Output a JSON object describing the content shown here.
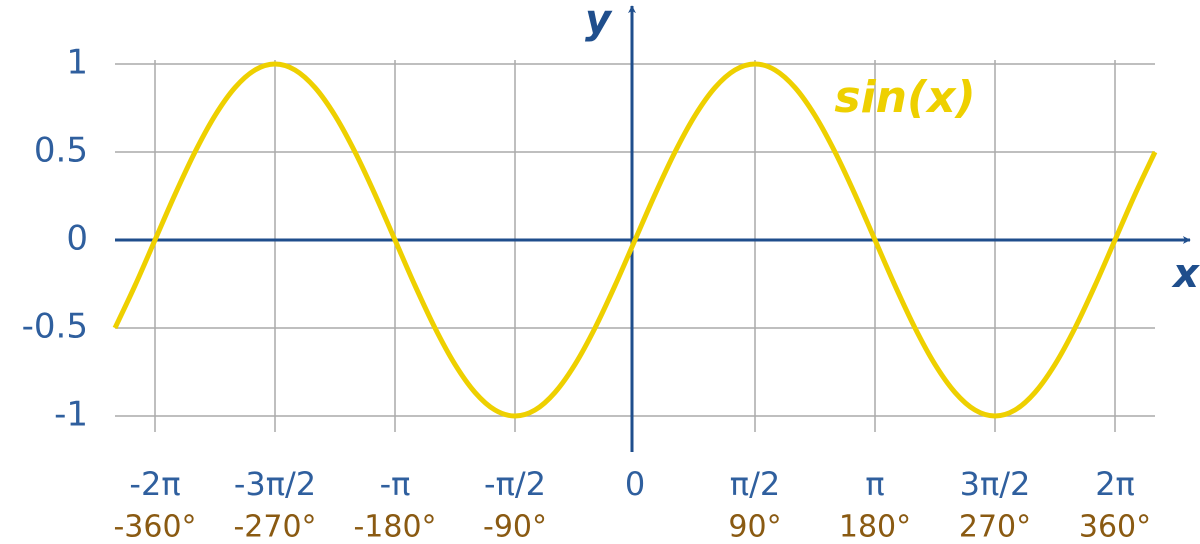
{
  "chart_data": {
    "type": "line",
    "x_label": "x",
    "y_label": "y",
    "x": [
      -390,
      -375,
      -360,
      -345,
      -330,
      -315,
      -300,
      -285,
      -270,
      -255,
      -240,
      -225,
      -210,
      -195,
      -180,
      -165,
      -150,
      -135,
      -120,
      -105,
      -90,
      -75,
      -60,
      -45,
      -30,
      -15,
      0,
      15,
      30,
      45,
      60,
      75,
      90,
      105,
      120,
      135,
      150,
      165,
      180,
      195,
      210,
      225,
      240,
      255,
      270,
      285,
      300,
      315,
      330,
      345,
      360,
      375,
      390
    ],
    "series": [
      {
        "name": "sin(x)",
        "color": "#eed000",
        "values": [
          -0.5,
          -0.259,
          0,
          0.259,
          0.5,
          0.707,
          0.866,
          0.966,
          1,
          0.966,
          0.866,
          0.707,
          0.5,
          0.259,
          0,
          -0.259,
          -0.5,
          -0.707,
          -0.866,
          -0.966,
          -1,
          -0.966,
          -0.866,
          -0.707,
          -0.5,
          -0.259,
          0,
          0.259,
          0.5,
          0.707,
          0.866,
          0.966,
          1,
          0.966,
          0.866,
          0.707,
          0.5,
          0.259,
          0,
          -0.259,
          -0.5,
          -0.707,
          -0.866,
          -0.966,
          -1,
          -0.966,
          -0.866,
          -0.707,
          -0.5,
          -0.259,
          0,
          0.259,
          0.5
        ]
      }
    ],
    "xlim": [
      -390,
      390
    ],
    "ylim": [
      -1,
      1
    ],
    "xticks": [
      {
        "value": -360,
        "label": "-2π"
      },
      {
        "value": -270,
        "label": "-3π/2"
      },
      {
        "value": -180,
        "label": "-π"
      },
      {
        "value": -90,
        "label": "-π/2"
      },
      0,
      {
        "value": 90,
        "label": "π/2"
      },
      {
        "value": 180,
        "label": "π"
      },
      {
        "value": 270,
        "label": "3π/2"
      },
      {
        "value": 360,
        "label": "2π"
      }
    ],
    "xtick_degree_labels": [
      "-360°",
      "-270°",
      "-180°",
      "-90°",
      null,
      "90°",
      "180°",
      "270°",
      "360°"
    ],
    "yticks": [
      1,
      0.5,
      0,
      -0.5,
      -1
    ],
    "grid": true
  }
}
